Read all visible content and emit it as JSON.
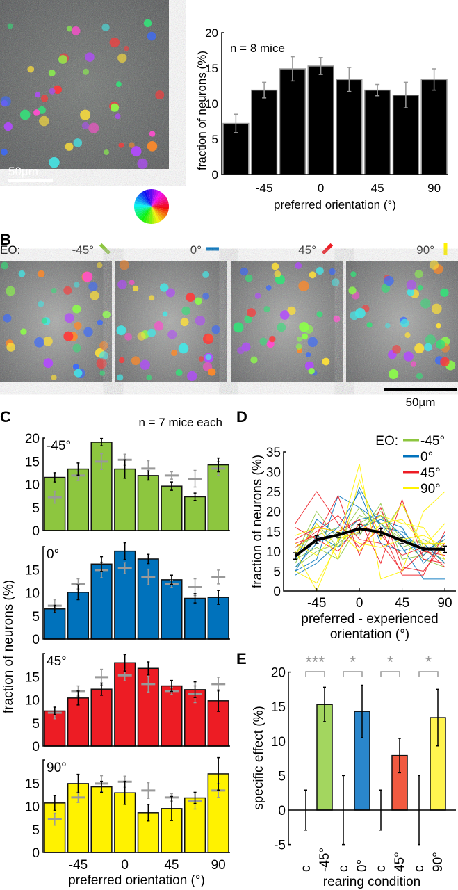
{
  "panel_labels": {
    "a": "A",
    "b": "B",
    "c": "C",
    "d": "D",
    "e": "E"
  },
  "scale_bar_a": "50µm",
  "scale_bar_b": "50µm",
  "panel_b": {
    "prefix": "EO:",
    "conditions": [
      "-45°",
      "0°",
      "45°",
      "90°"
    ]
  },
  "colors": {
    "m45": "#8dc63f",
    "z0": "#0072bc",
    "p45": "#ed1c24",
    "p90": "#fff200",
    "control": "#999999",
    "e_m45": "#a3d65f",
    "e_z0": "#2a86cc",
    "e_p45": "#f15a40",
    "e_p90": "#fff44f"
  },
  "chart_data": [
    {
      "id": "A",
      "type": "bar",
      "annotation": "n = 8 mice",
      "x": [
        -67.5,
        -45,
        -22.5,
        0,
        22.5,
        45,
        67.5,
        90
      ],
      "xticks": [
        "-45",
        "0",
        "45",
        "90"
      ],
      "values": [
        7.2,
        11.9,
        14.9,
        15.3,
        13.4,
        11.9,
        11.2,
        13.4
      ],
      "errors": [
        1.3,
        1.1,
        1.7,
        1.2,
        1.7,
        0.8,
        1.8,
        1.5
      ],
      "yticks": [
        "0",
        "5",
        "10",
        "15",
        "20"
      ],
      "ylim": [
        0,
        20
      ],
      "xlabel": "preferred orientation (°)",
      "ylabel": "fraction of neurons (%)"
    },
    {
      "id": "C",
      "type": "bar",
      "annotation": "n = 7 mice each",
      "x": [
        -67.5,
        -45,
        -22.5,
        0,
        22.5,
        45,
        67.5,
        90
      ],
      "xticks": [
        "-45",
        "0",
        "45",
        "90"
      ],
      "xlabel": "preferred orientation (°)",
      "ylabel": "fraction of neurons (%)",
      "ylim": [
        0,
        20
      ],
      "control": {
        "values": [
          7.2,
          11.9,
          14.9,
          15.3,
          13.4,
          11.9,
          11.2,
          13.4
        ],
        "errors": [
          1.3,
          1.1,
          1.7,
          1.2,
          1.7,
          0.8,
          1.8,
          1.5
        ]
      },
      "series": [
        {
          "name": "-45°",
          "values": [
            11.5,
            13.3,
            19.1,
            13.3,
            11.9,
            9.6,
            7.3,
            14.2
          ],
          "errors": [
            1.0,
            1.3,
            0.8,
            2.0,
            1.0,
            0.9,
            0.8,
            1.5
          ],
          "yticks": [
            "0",
            "5",
            "10",
            "15",
            "20"
          ]
        },
        {
          "name": "0°",
          "values": [
            6.5,
            10.1,
            16.2,
            19.0,
            17.3,
            12.8,
            8.8,
            9.0
          ],
          "errors": [
            0.8,
            1.6,
            1.6,
            1.8,
            1.0,
            1.0,
            1.0,
            1.5
          ],
          "yticks": [
            "0",
            "5",
            "10",
            "15"
          ]
        },
        {
          "name": "45°",
          "values": [
            7.6,
            10.4,
            12.3,
            18.0,
            16.8,
            13.0,
            12.2,
            9.8
          ],
          "errors": [
            0.8,
            1.5,
            1.3,
            1.8,
            1.4,
            1.2,
            1.7,
            2.3
          ],
          "yticks": [
            "0",
            "5",
            "10",
            "15"
          ]
        },
        {
          "name": "90°",
          "values": [
            10.7,
            14.9,
            14.2,
            12.9,
            8.6,
            9.5,
            11.8,
            17.0
          ],
          "errors": [
            1.6,
            2.0,
            1.2,
            2.5,
            1.8,
            2.6,
            1.2,
            3.5
          ],
          "yticks": [
            "0",
            "5",
            "10",
            "15"
          ]
        }
      ]
    },
    {
      "id": "D",
      "type": "line",
      "x": [
        -67.5,
        -45,
        -22.5,
        0,
        22.5,
        45,
        67.5,
        90
      ],
      "xticks": [
        "-45",
        "0",
        "45",
        "90"
      ],
      "yticks": [
        "0",
        "5",
        "10",
        "15",
        "20",
        "25",
        "30",
        "35"
      ],
      "ylim": [
        0,
        35
      ],
      "xlabel": [
        "preferred - experienced",
        "orientation (°)"
      ],
      "ylabel": "fraction of neurons (%)",
      "legend_title": "EO:",
      "legend_position": "top-right",
      "mean": {
        "values": [
          8.8,
          12.9,
          14.1,
          15.7,
          14.8,
          12.7,
          10.6,
          10.5
        ],
        "errors": [
          0.8,
          1.0,
          0.6,
          1.1,
          0.9,
          0.8,
          0.5,
          0.8
        ]
      },
      "series": [
        {
          "name": "-45°",
          "lines": [
            [
              9,
              20,
              13,
              21,
              14,
              22,
              10,
              8
            ],
            [
              7,
              17,
              11,
              19,
              17,
              13,
              8,
              6
            ],
            [
              11,
              14,
              16,
              14,
              22,
              8,
              9,
              13
            ],
            [
              8,
              11,
              8,
              17,
              20,
              13,
              12,
              7
            ],
            [
              6,
              10,
              12,
              16,
              19,
              11,
              13,
              10
            ]
          ]
        },
        {
          "name": "0°",
          "lines": [
            [
              5,
              8,
              24,
              21,
              17,
              11,
              3,
              3
            ],
            [
              4,
              7,
              12,
              26,
              16,
              15,
              10,
              13
            ],
            [
              6,
              12,
              16,
              25,
              12,
              10,
              12,
              7
            ],
            [
              8,
              18,
              14,
              18,
              19,
              14,
              9,
              14
            ],
            [
              5,
              14,
              11,
              16,
              18,
              16,
              7,
              12
            ]
          ]
        },
        {
          "name": "45°",
          "lines": [
            [
              17,
              25,
              17,
              11,
              16,
              4,
              4,
              15
            ],
            [
              12,
              14,
              24,
              9,
              21,
              6,
              5,
              12
            ],
            [
              13,
              16,
              15,
              18,
              7,
              23,
              8,
              7
            ],
            [
              11,
              15,
              19,
              13,
              12,
              5,
              10,
              9
            ],
            [
              16,
              13,
              10,
              17,
              14,
              9,
              11,
              6
            ]
          ]
        },
        {
          "name": "90°",
          "lines": [
            [
              5,
              2,
              12,
              32,
              3,
              5,
              20,
              25
            ],
            [
              9,
              17,
              8,
              28,
              13,
              22,
              11,
              17
            ],
            [
              14,
              16,
              15,
              10,
              17,
              18,
              12,
              12
            ],
            [
              10,
              0,
              13,
              15,
              19,
              17,
              16,
              8
            ],
            [
              12,
              9,
              15,
              12,
              11,
              13,
              14,
              11
            ]
          ]
        }
      ]
    },
    {
      "id": "E",
      "type": "bar",
      "categories": [
        "c",
        "-45°",
        "c",
        "0°",
        "c",
        "45°",
        "c",
        "90°"
      ],
      "values": [
        0,
        15.3,
        0,
        14.3,
        0,
        7.9,
        0,
        13.4
      ],
      "errors": [
        2.9,
        2.5,
        5.0,
        3.8,
        2.9,
        2.5,
        5.0,
        4.1
      ],
      "significance": [
        "***",
        "*",
        "*",
        "*"
      ],
      "yticks": [
        "-5",
        "0",
        "5",
        "10",
        "15",
        "20"
      ],
      "ylim": [
        -5,
        20
      ],
      "xlabel": "rearing condition",
      "ylabel": "specific effect (%)"
    }
  ]
}
